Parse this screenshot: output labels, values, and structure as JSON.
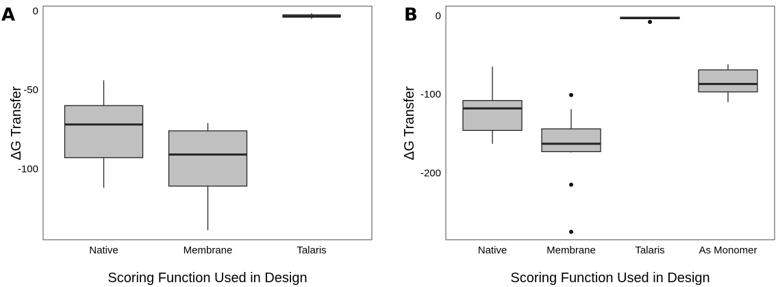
{
  "chart_data": [
    {
      "type": "boxplot",
      "panel_label": "A",
      "xlabel": "Scoring Function Used in Design",
      "ylabel": "ΔG Transfer",
      "ylim": [
        -145,
        3
      ],
      "yticks": [
        0,
        -50,
        -100
      ],
      "ytick_labels": [
        "0",
        "-50",
        "-100"
      ],
      "categories": [
        "Native",
        "Membrane",
        "Talaris"
      ],
      "boxes": [
        {
          "name": "Native",
          "whisker_low": -112,
          "q1": -93,
          "median": -72,
          "q3": -60,
          "whisker_high": -44,
          "outliers": []
        },
        {
          "name": "Membrane",
          "whisker_low": -139,
          "q1": -111,
          "median": -91,
          "q3": -76,
          "whisker_high": -71,
          "outliers": []
        },
        {
          "name": "Talaris",
          "whisker_low": -5,
          "q1": -4,
          "median": -3.5,
          "q3": -2.5,
          "whisker_high": -1.5,
          "outliers": []
        }
      ]
    },
    {
      "type": "boxplot",
      "panel_label": "B",
      "xlabel": "Scoring Function Used in Design",
      "ylabel": "ΔG Transfer",
      "ylim": [
        -285,
        12
      ],
      "yticks": [
        0,
        -100,
        -200
      ],
      "ytick_labels": [
        "0",
        "-100",
        "-200"
      ],
      "categories": [
        "Native",
        "Membrane",
        "Talaris",
        "As Monomer"
      ],
      "boxes": [
        {
          "name": "Native",
          "whisker_low": -163,
          "q1": -146,
          "median": -118,
          "q3": -108,
          "whisker_high": -65,
          "outliers": []
        },
        {
          "name": "Membrane",
          "whisker_low": -174,
          "q1": -173,
          "median": -163,
          "q3": -144,
          "whisker_high": -119,
          "outliers": [
            -101,
            -215,
            -275
          ]
        },
        {
          "name": "Talaris",
          "whisker_low": -4.5,
          "q1": -4,
          "median": -3,
          "q3": -2,
          "whisker_high": -1.5,
          "outliers": [
            -8
          ]
        },
        {
          "name": "As Monomer",
          "whisker_low": -110,
          "q1": -97,
          "median": -87,
          "q3": -69,
          "whisker_high": -62,
          "outliers": []
        }
      ]
    }
  ]
}
